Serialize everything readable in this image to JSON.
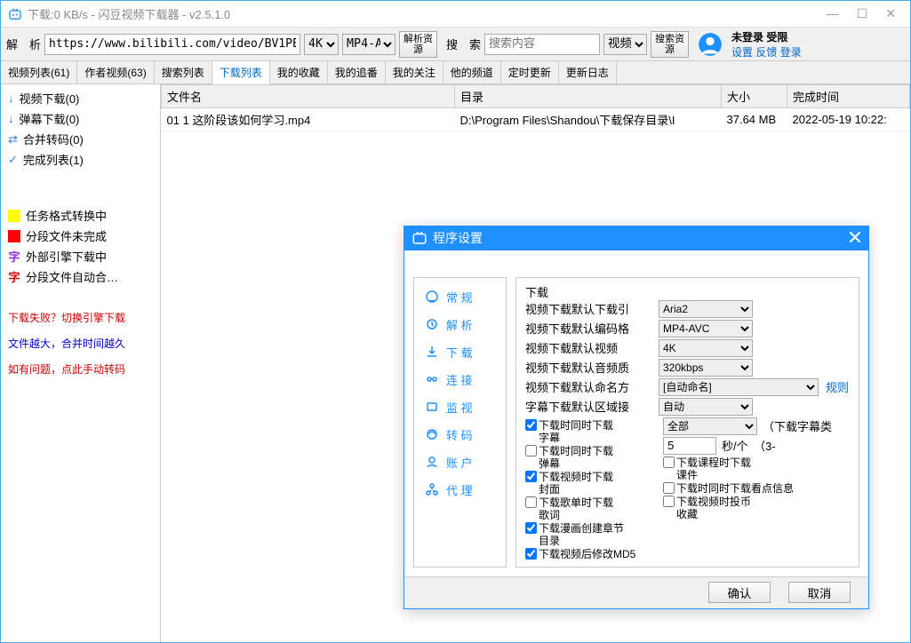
{
  "window": {
    "title": "下载:0 KB/s - 闪豆视频下载器 - v2.5.1.0"
  },
  "toolbar": {
    "parse_lbl": "解　析",
    "url": "https://www.bilibili.com/video/BV1PE4",
    "quality": "4K",
    "format": "MP4-A\\",
    "parse_btn": "解析资\n源",
    "search_lbl": "搜　索",
    "search_ph": "搜索内容",
    "search_type": "视频",
    "search_btn": "搜索资\n源",
    "login_top": "未登录 受限",
    "login_links": "设置 反馈 登录"
  },
  "tabs": [
    "视频列表(61)",
    "作者视频(63)",
    "搜索列表",
    "下载列表",
    "我的收藏",
    "我的追番",
    "我的关注",
    "他的频道",
    "定时更新",
    "更新日志"
  ],
  "active_tab": 3,
  "sidebar": {
    "items": [
      {
        "icon": "down",
        "label": "视频下载(0)"
      },
      {
        "icon": "down",
        "label": "弹幕下载(0)"
      },
      {
        "icon": "merge",
        "label": "合并转码(0)"
      },
      {
        "icon": "check",
        "label": "完成列表(1)"
      }
    ],
    "legends": [
      {
        "color": "#ffff00",
        "label": "任务格式转换中"
      },
      {
        "color": "#ff0000",
        "label": "分段文件未完成"
      },
      {
        "zi": "字",
        "label": "外部引擎下载中"
      },
      {
        "zi": "字",
        "color2": "#cc0000",
        "label": "分段文件自动合…"
      }
    ],
    "notes": [
      {
        "cls": "red-txt",
        "text": "下载失败？切换引擎下载"
      },
      {
        "cls": "blue-txt",
        "text": "文件越大，合并时间越久"
      },
      {
        "cls": "red-txt",
        "text": "如有问题，点此手动转码"
      }
    ]
  },
  "table": {
    "cols": [
      "文件名",
      "目录",
      "大小",
      "完成时间"
    ],
    "rows": [
      [
        "01 1 这阶段该如何学习.mp4",
        "D:\\Program Files\\Shandou\\下载保存目录\\I",
        "37.64 MB",
        "2022-05-19 10:22:"
      ]
    ]
  },
  "modal": {
    "title": "程序设置",
    "side": [
      "常 规",
      "解 析",
      "下 载",
      "连 接",
      "监 视",
      "转 码",
      "账 户",
      "代 理"
    ],
    "section": "下载",
    "fields": {
      "engine_lbl": "视频下载默认下载引",
      "engine": "Aria2",
      "codec_lbl": "视频下载默认编码格",
      "codec": "MP4-AVC",
      "vq_lbl": "视频下载默认视频",
      "vq": "4K",
      "aq_lbl": "视频下载默认音频质",
      "aq": "320kbps",
      "name_lbl": "视频下载默认命名方",
      "name": "[自动命名]",
      "rule": "规则",
      "sub_lbl": "字幕下载默认区域接",
      "sub": "自动",
      "scope": "全部",
      "interval": "5",
      "interval_unit": "秒/个　（3-",
      "sub_kind": "（下载字幕类"
    },
    "checks": [
      {
        "checked": true,
        "label": "下载时同时下载\n字幕"
      },
      {
        "checked": false,
        "label": "下载时同时下载\n弹幕"
      },
      {
        "checked": true,
        "label": "下载视频时下载\n封面"
      },
      {
        "checked": false,
        "label": "下载歌单时下载\n歌词"
      },
      {
        "checked": true,
        "label": "下载漫画创建章节\n目录"
      },
      {
        "checked": true,
        "label": "下载视频后修改MD5"
      }
    ],
    "checks_right": [
      {
        "checked": false,
        "label": "下载课程时下载\n课件"
      },
      {
        "checked": false,
        "label": "下载时同时下载看点信息"
      },
      {
        "checked": false,
        "label": "下载视频时投币\n收藏"
      }
    ],
    "ok": "确认",
    "cancel": "取消"
  }
}
